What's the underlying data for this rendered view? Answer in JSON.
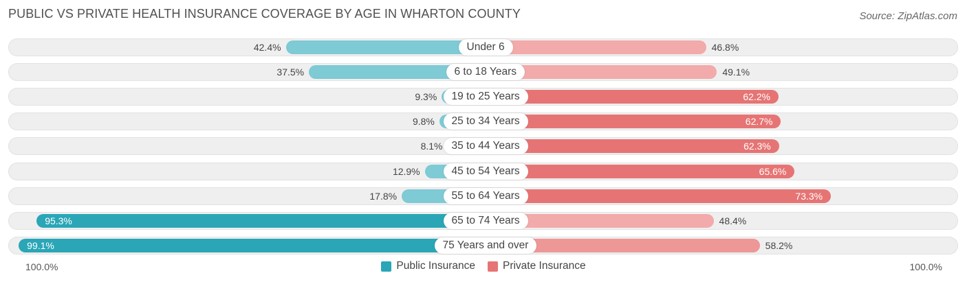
{
  "header": {
    "title": "PUBLIC VS PRIVATE HEALTH INSURANCE COVERAGE BY AGE IN WHARTON COUNTY",
    "source": "Source: ZipAtlas.com"
  },
  "axis": {
    "left_label": "100.0%",
    "right_label": "100.0%"
  },
  "legend": {
    "public_label": "Public Insurance",
    "private_label": "Private Insurance"
  },
  "colors": {
    "public_light": "#7ecad5",
    "public_dark": "#2aa6b7",
    "private_light": "#f2aaaa",
    "private_dark": "#e67474"
  },
  "chart_data": {
    "type": "bar",
    "orientation": "horizontal-diverging",
    "title": "PUBLIC VS PRIVATE HEALTH INSURANCE COVERAGE BY AGE IN WHARTON COUNTY",
    "xlim": [
      -100,
      100
    ],
    "categories": [
      "Under 6",
      "6 to 18 Years",
      "19 to 25 Years",
      "25 to 34 Years",
      "35 to 44 Years",
      "45 to 54 Years",
      "55 to 64 Years",
      "65 to 74 Years",
      "75 Years and over"
    ],
    "series": [
      {
        "name": "Public Insurance",
        "side": "left",
        "values": [
          42.4,
          37.5,
          9.3,
          9.8,
          8.1,
          12.9,
          17.8,
          95.3,
          99.1
        ],
        "labels": [
          "42.4%",
          "37.5%",
          "9.3%",
          "9.8%",
          "8.1%",
          "12.9%",
          "17.8%",
          "95.3%",
          "99.1%"
        ]
      },
      {
        "name": "Private Insurance",
        "side": "right",
        "values": [
          46.8,
          49.1,
          62.2,
          62.7,
          62.3,
          65.6,
          73.3,
          48.4,
          58.2
        ],
        "labels": [
          "46.8%",
          "49.1%",
          "62.2%",
          "62.7%",
          "62.3%",
          "65.6%",
          "73.3%",
          "48.4%",
          "58.2%"
        ]
      }
    ]
  }
}
